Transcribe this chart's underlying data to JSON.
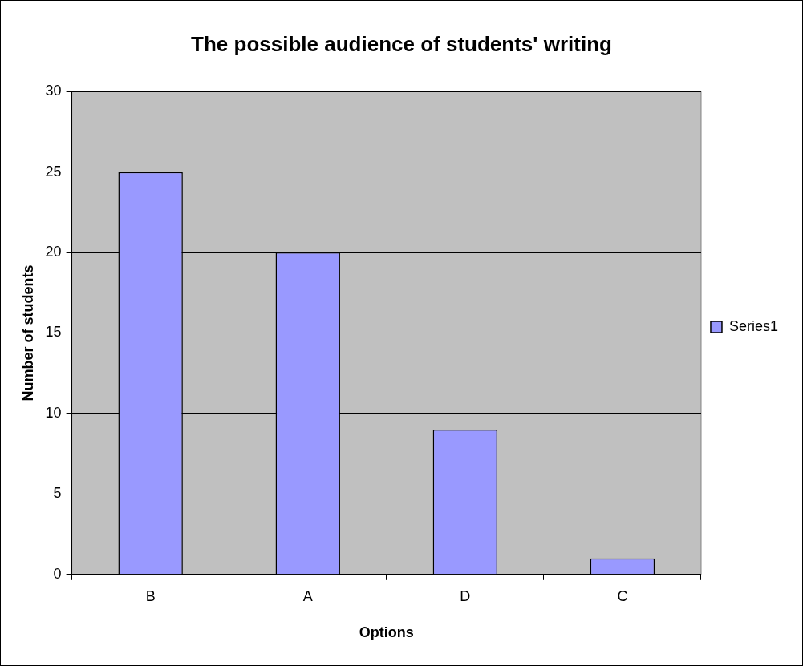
{
  "chart_data": {
    "type": "bar",
    "title": "The possible audience of students' writing",
    "xlabel": "Options",
    "ylabel": "Number of students",
    "categories": [
      "B",
      "A",
      "D",
      "C"
    ],
    "series": [
      {
        "name": "Series1",
        "color": "#9999ff",
        "values": [
          25,
          20,
          9,
          1
        ]
      }
    ],
    "ylim": [
      0,
      30
    ],
    "yticks": [
      0,
      5,
      10,
      15,
      20,
      25,
      30
    ],
    "grid": "y",
    "legend": "right"
  }
}
